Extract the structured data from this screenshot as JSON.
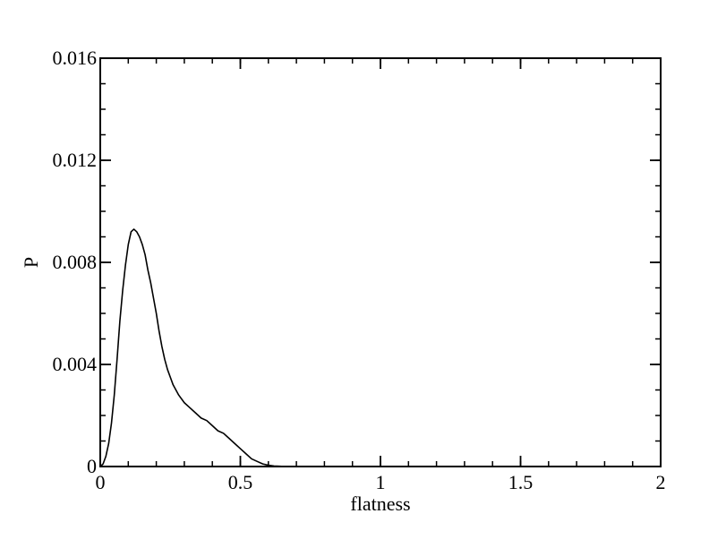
{
  "chart_data": {
    "type": "line",
    "title": "",
    "xlabel": "flatness",
    "ylabel": "P",
    "xlim": [
      0,
      2
    ],
    "ylim": [
      0,
      0.016
    ],
    "grid": false,
    "legend": "none",
    "colors": {
      "line": "#000000",
      "frame": "#000000",
      "background": "#ffffff"
    },
    "x_ticks": [
      {
        "value": 0,
        "label": "0"
      },
      {
        "value": 0.5,
        "label": "0.5"
      },
      {
        "value": 1,
        "label": "1"
      },
      {
        "value": 1.5,
        "label": "1.5"
      },
      {
        "value": 2,
        "label": "2"
      }
    ],
    "x_minor_step": 0.1,
    "y_ticks": [
      {
        "value": 0,
        "label": "0"
      },
      {
        "value": 0.004,
        "label": "0.004"
      },
      {
        "value": 0.008,
        "label": "0.008"
      },
      {
        "value": 0.012,
        "label": "0.012"
      },
      {
        "value": 0.016,
        "label": "0.016"
      }
    ],
    "y_minor_step": 0.001,
    "series": [
      {
        "x": [
          0.0,
          0.01,
          0.02,
          0.03,
          0.04,
          0.05,
          0.06,
          0.07,
          0.08,
          0.09,
          0.1,
          0.11,
          0.12,
          0.13,
          0.14,
          0.15,
          0.16,
          0.17,
          0.18,
          0.19,
          0.2,
          0.21,
          0.22,
          0.23,
          0.24,
          0.25,
          0.26,
          0.27,
          0.28,
          0.3,
          0.32,
          0.34,
          0.36,
          0.38,
          0.4,
          0.42,
          0.44,
          0.46,
          0.48,
          0.5,
          0.52,
          0.54,
          0.56,
          0.58,
          0.6,
          0.62,
          0.64,
          0.66,
          0.68,
          0.7,
          0.72,
          0.74,
          0.76
        ],
        "y": [
          0.0,
          0.0001,
          0.0004,
          0.0009,
          0.0017,
          0.0028,
          0.0042,
          0.0057,
          0.0069,
          0.0079,
          0.0087,
          0.0092,
          0.0093,
          0.0092,
          0.009,
          0.0087,
          0.0083,
          0.0077,
          0.0072,
          0.0066,
          0.006,
          0.0053,
          0.0047,
          0.0042,
          0.0038,
          0.0035,
          0.0032,
          0.003,
          0.0028,
          0.0025,
          0.0023,
          0.0021,
          0.0019,
          0.0018,
          0.0016,
          0.0014,
          0.0013,
          0.0011,
          0.0009,
          0.0007,
          0.0005,
          0.0003,
          0.0002,
          0.0001,
          5e-05,
          2e-05,
          1e-05,
          0.0,
          0.0,
          0.0,
          0.0,
          0.0,
          0.0
        ]
      }
    ]
  }
}
